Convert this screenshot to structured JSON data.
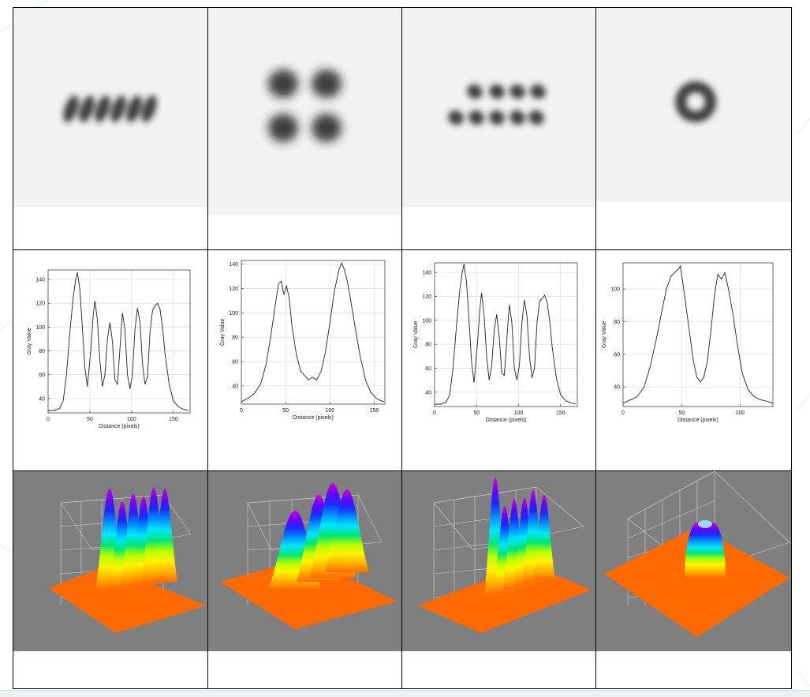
{
  "figure": {
    "columns": 4,
    "rows": [
      "beam-profile",
      "line-profile",
      "surface-plot"
    ],
    "colors": {
      "border": "#000000",
      "panel_bg": "#7f7f7f",
      "floor": "#ff6a00",
      "line": "#222222"
    }
  },
  "beam_images": [
    {
      "pattern": "six lobes in a row"
    },
    {
      "pattern": "four lobes 2x2"
    },
    {
      "pattern": "two rows of lobes"
    },
    {
      "pattern": "ring (donut)"
    }
  ],
  "chart_data": [
    {
      "type": "line",
      "xlabel": "Distance (pixels)",
      "ylabel": "Gray Value",
      "xlim": [
        0,
        170
      ],
      "ylim": [
        28,
        148
      ],
      "xticks": [
        0,
        50,
        100,
        150
      ],
      "yticks": [
        40,
        60,
        80,
        100,
        120,
        140
      ],
      "grid": true,
      "series": [
        {
          "x": [
            0,
            8,
            14,
            18,
            22,
            26,
            30,
            33,
            35,
            38,
            41,
            44,
            47,
            51,
            54,
            56,
            59,
            62,
            65,
            68,
            71,
            74,
            77,
            80,
            83,
            86,
            89,
            92,
            95,
            98,
            101,
            104,
            107,
            110,
            113,
            116,
            119,
            122,
            125,
            128,
            131,
            134,
            137,
            140,
            145,
            150,
            156,
            162,
            168
          ],
          "y": [
            30,
            30,
            32,
            38,
            60,
            95,
            125,
            140,
            146,
            132,
            100,
            66,
            50,
            80,
            110,
            122,
            106,
            72,
            50,
            60,
            90,
            104,
            88,
            56,
            52,
            82,
            112,
            98,
            60,
            48,
            60,
            98,
            116,
            104,
            70,
            52,
            58,
            96,
            114,
            118,
            120,
            115,
            100,
            78,
            52,
            38,
            33,
            31,
            30
          ]
        }
      ]
    },
    {
      "type": "line",
      "xlabel": "Distance (pixels)",
      "ylabel": "Gray Value",
      "xlim": [
        0,
        162
      ],
      "ylim": [
        25,
        143
      ],
      "xticks": [
        0,
        50,
        100,
        150
      ],
      "yticks": [
        40,
        60,
        80,
        100,
        120,
        140
      ],
      "grid": true,
      "series": [
        {
          "x": [
            0,
            8,
            15,
            22,
            28,
            33,
            38,
            42,
            45,
            48,
            51,
            54,
            57,
            62,
            67,
            72,
            76,
            80,
            85,
            90,
            95,
            100,
            105,
            110,
            113,
            116,
            119,
            123,
            128,
            134,
            140,
            146,
            152,
            157,
            161
          ],
          "y": [
            27,
            30,
            34,
            42,
            58,
            80,
            105,
            124,
            126,
            115,
            122,
            112,
            90,
            66,
            52,
            48,
            45,
            47,
            45,
            52,
            68,
            92,
            118,
            135,
            141,
            136,
            128,
            112,
            90,
            65,
            45,
            35,
            30,
            28,
            27
          ]
        }
      ]
    },
    {
      "type": "line",
      "xlabel": "Distance (pixels)",
      "ylabel": "Gray Value",
      "xlim": [
        0,
        170
      ],
      "ylim": [
        28,
        148
      ],
      "xticks": [
        0,
        50,
        100,
        150
      ],
      "yticks": [
        40,
        60,
        80,
        100,
        120,
        140
      ],
      "grid": true,
      "series": [
        {
          "x": [
            0,
            8,
            14,
            18,
            22,
            26,
            30,
            33,
            35,
            38,
            41,
            44,
            47,
            51,
            54,
            56,
            59,
            62,
            65,
            68,
            71,
            74,
            77,
            80,
            83,
            86,
            89,
            92,
            95,
            98,
            101,
            104,
            107,
            110,
            113,
            116,
            119,
            122,
            125,
            128,
            131,
            134,
            137,
            140,
            145,
            150,
            156,
            162,
            168
          ],
          "y": [
            30,
            30,
            32,
            38,
            60,
            95,
            125,
            140,
            147,
            132,
            100,
            66,
            48,
            80,
            110,
            123,
            104,
            70,
            50,
            62,
            92,
            105,
            86,
            56,
            54,
            84,
            113,
            98,
            60,
            50,
            62,
            98,
            117,
            104,
            70,
            52,
            60,
            98,
            116,
            118,
            121,
            115,
            100,
            78,
            52,
            38,
            33,
            31,
            30
          ]
        }
      ]
    },
    {
      "type": "line",
      "xlabel": "Distance (pixels)",
      "ylabel": "Gray Value",
      "xlim": [
        0,
        128
      ],
      "ylim": [
        28,
        116
      ],
      "xticks": [
        0,
        50,
        100
      ],
      "yticks": [
        40,
        60,
        80,
        100
      ],
      "grid": true,
      "series": [
        {
          "x": [
            0,
            6,
            12,
            18,
            23,
            28,
            33,
            37,
            41,
            44,
            47,
            49,
            51,
            54,
            57,
            60,
            63,
            66,
            69,
            72,
            75,
            78,
            81,
            84,
            87,
            90,
            94,
            98,
            102,
            107,
            112,
            118,
            124,
            128
          ],
          "y": [
            30,
            32,
            34,
            40,
            52,
            68,
            86,
            100,
            108,
            110,
            112,
            114,
            104,
            88,
            72,
            56,
            46,
            43,
            46,
            56,
            74,
            96,
            109,
            106,
            110,
            100,
            84,
            64,
            48,
            38,
            34,
            32,
            31,
            30
          ]
        }
      ]
    }
  ],
  "surface_plots": [
    {
      "kind": "six-peaks-row",
      "peaks": 6
    },
    {
      "kind": "four-peaks-2x2",
      "peaks": 4
    },
    {
      "kind": "double-row-peaks",
      "peaks": 6
    },
    {
      "kind": "ring-donut",
      "peaks": 1
    }
  ]
}
